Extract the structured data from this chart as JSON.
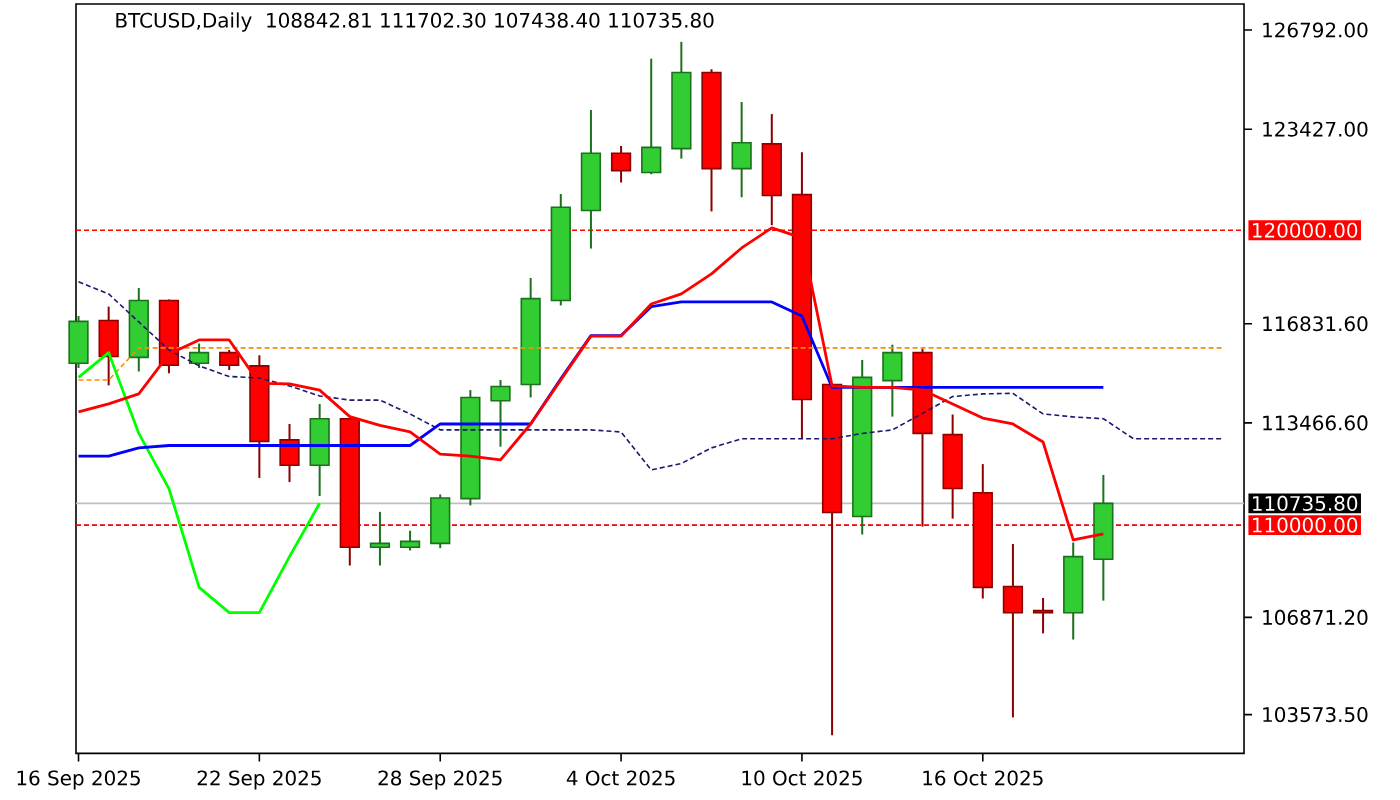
{
  "chart_data": {
    "type": "candlestick",
    "title": "BTCUSD,Daily",
    "subtitle": "108842.81 111702.30 107438.40 110735.80",
    "x": [
      "2025-09-16",
      "2025-09-17",
      "2025-09-18",
      "2025-09-19",
      "2025-09-20",
      "2025-09-21",
      "2025-09-22",
      "2025-09-23",
      "2025-09-24",
      "2025-09-25",
      "2025-09-26",
      "2025-09-27",
      "2025-09-28",
      "2025-09-29",
      "2025-09-30",
      "2025-10-01",
      "2025-10-02",
      "2025-10-03",
      "2025-10-04",
      "2025-10-05",
      "2025-10-06",
      "2025-10-07",
      "2025-10-08",
      "2025-10-09",
      "2025-10-10",
      "2025-10-11",
      "2025-10-12",
      "2025-10-13",
      "2025-10-14",
      "2025-10-15",
      "2025-10-16",
      "2025-10-17",
      "2025-10-18",
      "2025-10-19",
      "2025-10-20"
    ],
    "ohlc": [
      [
        115490,
        117090,
        115330,
        116910
      ],
      [
        116940,
        117410,
        114740,
        115720
      ],
      [
        115690,
        118040,
        115210,
        117620
      ],
      [
        117620,
        117650,
        115150,
        115420
      ],
      [
        115490,
        116160,
        115330,
        115850
      ],
      [
        115850,
        115940,
        115260,
        115420
      ],
      [
        115400,
        115760,
        111600,
        112840
      ],
      [
        112890,
        113430,
        111460,
        112030
      ],
      [
        112030,
        114110,
        110990,
        113610
      ],
      [
        113610,
        113650,
        108630,
        109250
      ],
      [
        109250,
        110450,
        108630,
        109380
      ],
      [
        109250,
        109810,
        109140,
        109450
      ],
      [
        109380,
        111040,
        109220,
        110920
      ],
      [
        110900,
        114580,
        110670,
        114330
      ],
      [
        114220,
        114920,
        112660,
        114700
      ],
      [
        114770,
        118380,
        114330,
        117680
      ],
      [
        117620,
        121230,
        117450,
        120780
      ],
      [
        120670,
        124080,
        119380,
        122610
      ],
      [
        122610,
        122860,
        121620,
        122020
      ],
      [
        121960,
        125820,
        121900,
        122810
      ],
      [
        122770,
        126390,
        122430,
        125350
      ],
      [
        125350,
        125460,
        120640,
        122090
      ],
      [
        122090,
        124350,
        121120,
        122970
      ],
      [
        122930,
        123940,
        120170,
        121180
      ],
      [
        121210,
        122650,
        112930,
        114260
      ],
      [
        114770,
        114800,
        102870,
        110430
      ],
      [
        110290,
        115600,
        109680,
        115010
      ],
      [
        114900,
        116120,
        113680,
        115850
      ],
      [
        115850,
        115990,
        109950,
        113110
      ],
      [
        113070,
        113750,
        110220,
        111240
      ],
      [
        111100,
        112070,
        107510,
        107890
      ],
      [
        107920,
        109360,
        103480,
        107030
      ],
      [
        107100,
        107530,
        106330,
        107030
      ],
      [
        107030,
        109410,
        106120,
        108930
      ],
      [
        108842.81,
        111702.3,
        107438.4,
        110735.8
      ]
    ],
    "colors": [
      "#32cd32",
      "#ff0000",
      "#32cd32",
      "#ff0000",
      "#32cd32",
      "#ff0000",
      "#ff0000",
      "#ff0000",
      "#32cd32",
      "#ff0000",
      "#32cd32",
      "#32cd32",
      "#32cd32",
      "#32cd32",
      "#32cd32",
      "#32cd32",
      "#32cd32",
      "#32cd32",
      "#ff0000",
      "#32cd32",
      "#32cd32",
      "#ff0000",
      "#32cd32",
      "#ff0000",
      "#ff0000",
      "#ff0000",
      "#32cd32",
      "#32cd32",
      "#ff0000",
      "#ff0000",
      "#ff0000",
      "#ff0000",
      "#ff0000",
      "#32cd32",
      "#32cd32"
    ],
    "series": [
      {
        "type": "line",
        "color": "#191970",
        "line_style": "dashed",
        "x": [
          "2025-09-16",
          "2025-09-17",
          "2025-09-18",
          "2025-09-19",
          "2025-09-20",
          "2025-09-21",
          "2025-09-22",
          "2025-09-23",
          "2025-09-24",
          "2025-09-25",
          "2025-09-26",
          "2025-09-27",
          "2025-09-28",
          "2025-09-29",
          "2025-09-30",
          "2025-10-01",
          "2025-10-02",
          "2025-10-03",
          "2025-10-04",
          "2025-10-05",
          "2025-10-06",
          "2025-10-07",
          "2025-10-08",
          "2025-10-09",
          "2025-10-10",
          "2025-10-11",
          "2025-10-12",
          "2025-10-13",
          "2025-10-14",
          "2025-10-15",
          "2025-10-16",
          "2025-10-17",
          "2025-10-18",
          "2025-10-19",
          "2025-10-20",
          "2025-10-21",
          "2025-10-22",
          "2025-10-23",
          "2025-10-24"
        ],
        "values": [
          118250,
          117840,
          116890,
          115940,
          115400,
          115040,
          114990,
          114720,
          114380,
          114240,
          114240,
          113770,
          113230,
          113230,
          113230,
          113230,
          113230,
          113230,
          113160,
          111870,
          112090,
          112620,
          112930,
          112930,
          112930,
          112930,
          113110,
          113230,
          113790,
          114360,
          114450,
          114470,
          113770,
          113670,
          113610,
          112930,
          112930,
          112930,
          112930
        ]
      },
      {
        "type": "line",
        "color": "#ff8c00",
        "line_style": "dashed",
        "x": [
          "2025-09-16",
          "2025-09-17",
          "2025-09-18",
          "2025-09-19",
          "2025-09-20",
          "2025-09-21",
          "2025-09-22",
          "2025-09-23",
          "2025-09-24",
          "2025-09-25",
          "2025-09-26",
          "2025-09-27",
          "2025-09-28",
          "2025-09-29",
          "2025-09-30",
          "2025-10-01",
          "2025-10-02",
          "2025-10-03",
          "2025-10-04",
          "2025-10-05",
          "2025-10-06",
          "2025-10-07",
          "2025-10-08",
          "2025-10-09",
          "2025-10-10",
          "2025-10-11",
          "2025-10-12",
          "2025-10-13",
          "2025-10-14",
          "2025-10-15",
          "2025-10-16",
          "2025-10-17",
          "2025-10-18",
          "2025-10-19",
          "2025-10-20",
          "2025-10-21",
          "2025-10-22",
          "2025-10-23",
          "2025-10-24"
        ],
        "values": [
          114920,
          114920,
          116010,
          116010,
          116010,
          116010,
          116010,
          116010,
          116010,
          116010,
          116010,
          116010,
          116010,
          116010,
          116010,
          116010,
          116010,
          116010,
          116010,
          116010,
          116010,
          116010,
          116010,
          116010,
          116010,
          116010,
          116010,
          116010,
          116010,
          116010,
          116010,
          116010,
          116010,
          116010,
          116010,
          116010,
          116010,
          116010,
          116010
        ]
      },
      {
        "type": "line",
        "color": "#00ff00",
        "line_style": "solid",
        "x": [
          "2025-09-16",
          "2025-09-17",
          "2025-09-18",
          "2025-09-19",
          "2025-09-20",
          "2025-09-21",
          "2025-09-22",
          "2025-09-23",
          "2025-09-24"
        ],
        "values": [
          115010,
          115850,
          113110,
          111240,
          107890,
          107030,
          107030,
          108930,
          110740
        ]
      },
      {
        "type": "line",
        "color": "#0000ff",
        "line_style": "solid",
        "values": [
          112340,
          112340,
          112620,
          112700,
          112700,
          112700,
          112700,
          112700,
          112700,
          112700,
          112700,
          112700,
          113430,
          113430,
          113430,
          113430,
          114960,
          116430,
          116430,
          117410,
          117570,
          117570,
          117570,
          117570,
          117090,
          114670,
          114670,
          114670,
          114670,
          114670,
          114670,
          114670,
          114670,
          114670,
          114670
        ]
      },
      {
        "type": "line",
        "color": "#ff0000",
        "line_style": "solid",
        "values": [
          113840,
          114110,
          114450,
          115800,
          116280,
          116280,
          114810,
          114790,
          114580,
          113680,
          113380,
          113160,
          112410,
          112340,
          112210,
          113430,
          114920,
          116410,
          116410,
          117500,
          117840,
          118520,
          119400,
          120080,
          119740,
          114720,
          114670,
          114670,
          114580,
          114110,
          113630,
          113430,
          112820,
          109500,
          109700
        ]
      }
    ],
    "xlim": [
      "2025-09-15T22:00",
      "2025-10-24T16:00"
    ],
    "ylim": [
      102258,
      127674
    ],
    "xticks": [
      {
        "value": "2025-09-16",
        "label": "16 Sep 2025"
      },
      {
        "value": "2025-09-22",
        "label": "22 Sep 2025"
      },
      {
        "value": "2025-09-28",
        "label": "28 Sep 2025"
      },
      {
        "value": "2025-10-04",
        "label": "4 Oct 2025"
      },
      {
        "value": "2025-10-10",
        "label": "10 Oct 2025"
      },
      {
        "value": "2025-10-16",
        "label": "16 Oct 2025"
      }
    ],
    "yticks": [
      {
        "value": 103573.5,
        "label": "103573.50"
      },
      {
        "value": 106871.2,
        "label": "106871.20"
      },
      {
        "value": 113466.6,
        "label": "113466.60"
      },
      {
        "value": 116831.6,
        "label": "116831.60"
      },
      {
        "value": 123427,
        "label": "123427.00"
      },
      {
        "value": 126792,
        "label": "126792.00"
      }
    ],
    "ref_lines": [
      {
        "axis": "y",
        "value": 120000,
        "label": "120000.00",
        "color": "#ff0000",
        "line_style": "dashed"
      },
      {
        "axis": "y",
        "value": 110000,
        "label": "110000.00",
        "color": "#ff0000",
        "line_style": "dashed"
      },
      {
        "axis": "y",
        "value": 110735.8,
        "label": "110735.80",
        "color": "#c0c0c0",
        "line_style": "solid"
      }
    ]
  }
}
